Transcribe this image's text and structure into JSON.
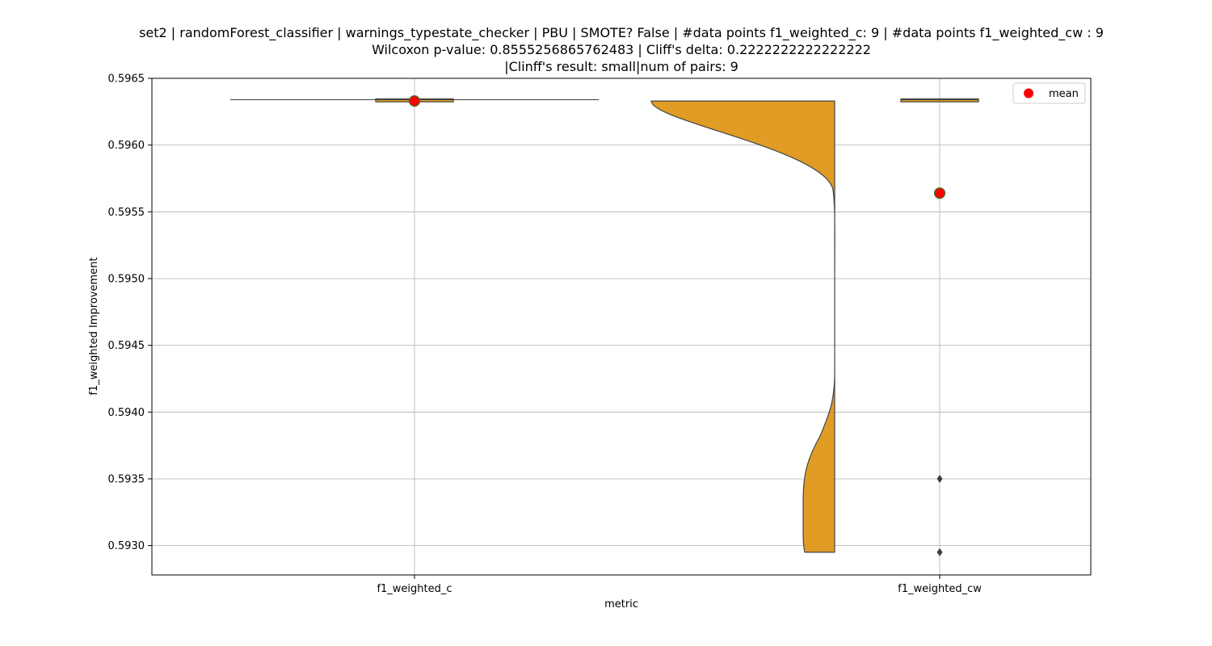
{
  "chart_data": {
    "type": "violin",
    "title": [
      "set2 | randomForest_classifier | warnings_typestate_checker | PBU | SMOTE? False | #data points f1_weighted_c: 9 | #data points f1_weighted_cw : 9",
      "Wilcoxon p-value: 0.8555256865762483 | Cliff's delta: 0.2222222222222222",
      "|Clinff's result: small|num of pairs: 9"
    ],
    "xlabel": "metric",
    "ylabel": "f1_weighted Improvement",
    "ylim": [
      0.59278,
      0.5965
    ],
    "yticks": [
      0.593,
      0.5935,
      0.594,
      0.5945,
      0.595,
      0.5955,
      0.596,
      0.5965
    ],
    "ytick_labels": [
      "0.5930",
      "0.5935",
      "0.5940",
      "0.5945",
      "0.5950",
      "0.5955",
      "0.5960",
      "0.5965"
    ],
    "categories": [
      "f1_weighted_c",
      "f1_weighted_cw"
    ],
    "grid": true,
    "legend": {
      "position": "top-right",
      "entries": [
        "mean"
      ]
    },
    "violin_color": "#e09c24",
    "mean_color": "#ff0000",
    "mean_edge_color": "#2e7d32",
    "series": [
      {
        "category": "f1_weighted_c",
        "min": 0.59633,
        "max": 0.59634,
        "q1": 0.59633,
        "q3": 0.59634,
        "median": 0.59634,
        "mean": 0.59633,
        "outliers": []
      },
      {
        "category": "f1_weighted_cw",
        "min": 0.59633,
        "max": 0.59634,
        "q1": 0.59633,
        "q3": 0.59634,
        "median": 0.59634,
        "mean": 0.59564,
        "outliers": [
          0.5935,
          0.59295
        ],
        "violin_range": [
          0.59295,
          0.59633
        ]
      }
    ]
  }
}
